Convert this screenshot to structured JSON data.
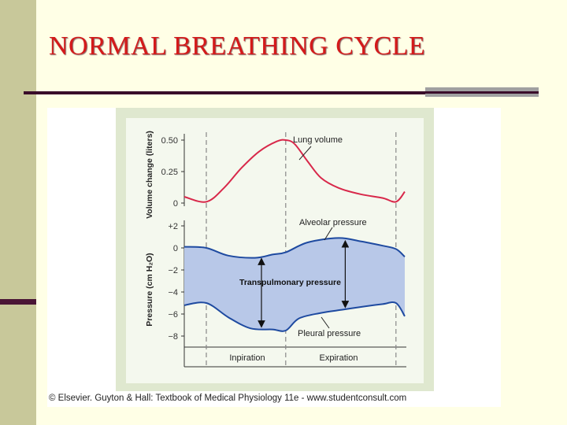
{
  "slide": {
    "title": "NORMAL BREATHING CYCLE",
    "credit": "© Elsevier. Guyton & Hall: Textbook of Medical Physiology 11e - www.studentconsult.com"
  },
  "colors": {
    "title": "#d41a1a",
    "volume_curve": "#d8284a",
    "pressure_band": "#b8c8e8",
    "pressure_lines": "#1e4aa0"
  },
  "chart_data": [
    {
      "type": "line",
      "ylabel": "Volume change (liters)",
      "yticks": [
        0,
        0.25,
        0.5
      ],
      "ytick_labels": [
        "0",
        "0.25",
        "0.50"
      ],
      "ylim": [
        0,
        0.55
      ],
      "xlim": [
        0,
        1
      ],
      "series": [
        {
          "name": "Lung volume",
          "x": [
            0,
            0.1,
            0.18,
            0.26,
            0.34,
            0.42,
            0.46,
            0.5,
            0.56,
            0.62,
            0.7,
            0.8,
            0.9,
            0.96,
            1.0
          ],
          "y": [
            0.05,
            0.01,
            0.12,
            0.28,
            0.41,
            0.49,
            0.5,
            0.47,
            0.33,
            0.2,
            0.12,
            0.07,
            0.04,
            0.01,
            0.09
          ]
        }
      ],
      "dividers_x": [
        0.1,
        0.46,
        0.96
      ]
    },
    {
      "type": "line",
      "ylabel": "Pressure (cm H₂O)",
      "yticks": [
        2,
        0,
        -2,
        -4,
        -6,
        -8
      ],
      "ytick_labels": [
        "+2",
        "0",
        "−2",
        "−4",
        "−6",
        "−8"
      ],
      "ylim": [
        -9,
        2.5
      ],
      "xlim": [
        0,
        1
      ],
      "series": [
        {
          "name": "Alveolar pressure",
          "x": [
            0,
            0.1,
            0.2,
            0.32,
            0.4,
            0.46,
            0.56,
            0.7,
            0.8,
            0.9,
            0.96,
            1.0
          ],
          "y": [
            0.1,
            0.0,
            -0.7,
            -0.9,
            -0.6,
            -0.4,
            0.5,
            0.9,
            0.6,
            0.2,
            -0.1,
            -0.8
          ]
        },
        {
          "name": "Pleural pressure",
          "x": [
            0,
            0.1,
            0.2,
            0.3,
            0.4,
            0.46,
            0.52,
            0.62,
            0.72,
            0.82,
            0.9,
            0.96,
            1.0
          ],
          "y": [
            -5.2,
            -5.0,
            -6.3,
            -7.3,
            -7.4,
            -7.5,
            -6.4,
            -5.9,
            -5.6,
            -5.3,
            -5.1,
            -5.0,
            -6.2
          ]
        }
      ],
      "band_label": "Transpulmonary pressure",
      "phase_labels": [
        "Inpiration",
        "Expiration"
      ],
      "dividers_x": [
        0.1,
        0.46,
        0.96
      ]
    }
  ]
}
